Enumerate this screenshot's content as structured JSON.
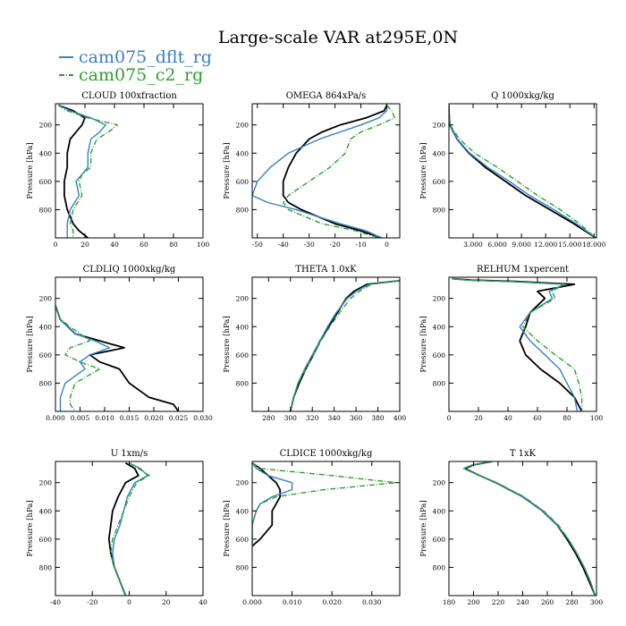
{
  "figure": {
    "title": "Large-scale VAR at295E,0N",
    "legend": [
      {
        "label": "cam075_dflt_rg",
        "color": "#3a7fbf",
        "dash": ""
      },
      {
        "label": "cam075_c2_rg",
        "color": "#2e9e2e",
        "dash": "6 2 1 2"
      }
    ]
  },
  "colors": {
    "black": "#000000",
    "dflt": "#3a7fbf",
    "c2": "#2e9e2e"
  },
  "chart_data": [
    {
      "type": "line",
      "title": "CLOUD  100xfraction",
      "ylabel": "Pressure [hPa]",
      "xlim": [
        0,
        100
      ],
      "ylim": [
        1000,
        50
      ],
      "xticks": [
        0,
        20,
        40,
        60,
        80,
        100
      ],
      "xticklabels": [
        "0",
        "20",
        "40",
        "60",
        "80",
        "100"
      ],
      "yticks": [
        200,
        400,
        600,
        800
      ],
      "yticklabels": [
        "200",
        "400",
        "600",
        "800"
      ],
      "p": [
        60,
        100,
        150,
        200,
        250,
        300,
        400,
        500,
        550,
        600,
        700,
        800,
        900,
        950,
        1000
      ],
      "series": [
        {
          "name": "black",
          "values": [
            2,
            12,
            20,
            18,
            14,
            10,
            8,
            8,
            7,
            6,
            6,
            8,
            12,
            16,
            22
          ]
        },
        {
          "name": "cam075_dflt_rg",
          "values": [
            2,
            10,
            24,
            34,
            30,
            24,
            22,
            22,
            18,
            14,
            16,
            10,
            8,
            8,
            8
          ]
        },
        {
          "name": "cam075_c2_rg",
          "values": [
            2,
            8,
            22,
            42,
            36,
            28,
            24,
            24,
            18,
            16,
            18,
            12,
            10,
            12,
            12
          ]
        }
      ]
    },
    {
      "type": "line",
      "title": "OMEGA  864xPa/s",
      "ylabel": "Pressure [hPa]",
      "xlim": [
        -52,
        5
      ],
      "ylim": [
        1000,
        50
      ],
      "xticks": [
        -50,
        -40,
        -30,
        -20,
        -10,
        0
      ],
      "xticklabels": [
        "-50",
        "-40",
        "-30",
        "-20",
        "-10",
        "0"
      ],
      "yticks": [
        200,
        400,
        600,
        800
      ],
      "yticklabels": [
        "200",
        "400",
        "600",
        "800"
      ],
      "p": [
        60,
        100,
        150,
        200,
        250,
        300,
        400,
        500,
        600,
        700,
        750,
        800,
        900,
        950,
        1000
      ],
      "series": [
        {
          "name": "black",
          "values": [
            0,
            -1,
            -8,
            -18,
            -25,
            -30,
            -35,
            -38,
            -40,
            -40,
            -38,
            -33,
            -20,
            -10,
            -2
          ]
        },
        {
          "name": "cam075_dflt_rg",
          "values": [
            0,
            0,
            -3,
            -10,
            -18,
            -26,
            -38,
            -45,
            -50,
            -52,
            -46,
            -35,
            -18,
            -8,
            -2
          ]
        },
        {
          "name": "cam075_c2_rg",
          "values": [
            0,
            2,
            3,
            -3,
            -10,
            -14,
            -16,
            -22,
            -30,
            -38,
            -40,
            -38,
            -25,
            -12,
            -3
          ]
        }
      ]
    },
    {
      "type": "line",
      "title": "Q  1000xkg/kg",
      "ylabel": "Pressure [hPa]",
      "xlim": [
        0,
        18.3
      ],
      "ylim": [
        1000,
        50
      ],
      "xticks": [
        3,
        6,
        9,
        12,
        15,
        18
      ],
      "xticklabels": [
        "3.000",
        "6.000",
        "9.000",
        "12.000",
        "15.000",
        "18.000"
      ],
      "yticks": [
        200,
        400,
        600,
        800
      ],
      "yticklabels": [
        "200",
        "400",
        "600",
        "800"
      ],
      "p": [
        60,
        100,
        200,
        300,
        400,
        500,
        600,
        700,
        800,
        900,
        1000
      ],
      "series": [
        {
          "name": "black",
          "values": [
            0,
            0,
            0.1,
            1.0,
            2.5,
            4.5,
            7.0,
            9.5,
            12.5,
            15.5,
            18.2
          ]
        },
        {
          "name": "cam075_dflt_rg",
          "values": [
            0,
            0,
            0.1,
            1.0,
            2.6,
            4.8,
            7.5,
            10.0,
            13.0,
            15.8,
            18.2
          ]
        },
        {
          "name": "cam075_c2_rg",
          "values": [
            0,
            0,
            0.15,
            1.3,
            3.2,
            6.0,
            8.5,
            11.0,
            13.8,
            16.2,
            18.2
          ]
        }
      ]
    },
    {
      "type": "line",
      "title": "CLDLIQ  1000xkg/kg",
      "ylabel": "Pressure [hPa]",
      "xlim": [
        0,
        0.03
      ],
      "ylim": [
        1000,
        50
      ],
      "xticks": [
        0,
        0.005,
        0.01,
        0.015,
        0.02,
        0.025,
        0.03
      ],
      "xticklabels": [
        "0.000",
        "0.005",
        "0.010",
        "0.015",
        "0.020",
        "0.025",
        "0.030"
      ],
      "yticks": [
        200,
        400,
        600,
        800
      ],
      "yticklabels": [
        "200",
        "400",
        "600",
        "800"
      ],
      "p": [
        250,
        350,
        450,
        500,
        550,
        600,
        650,
        700,
        800,
        900,
        950,
        1000
      ],
      "series": [
        {
          "name": "black",
          "values": [
            0,
            0.001,
            0.004,
            0.009,
            0.014,
            0.007,
            0.009,
            0.013,
            0.015,
            0.019,
            0.024,
            0.025
          ]
        },
        {
          "name": "cam075_dflt_rg",
          "values": [
            0,
            0.001,
            0.004,
            0.008,
            0.011,
            0.007,
            0.005,
            0.006,
            0.002,
            0.001,
            0.001,
            0.001
          ]
        },
        {
          "name": "cam075_c2_rg",
          "values": [
            0,
            0.001,
            0.005,
            0.007,
            0.003,
            0.002,
            0.005,
            0.009,
            0.004,
            0.003,
            0.003,
            0.004
          ]
        }
      ]
    },
    {
      "type": "line",
      "title": "THETA  1.0xK",
      "ylabel": "Pressure [hPa]",
      "xlim": [
        265,
        400
      ],
      "ylim": [
        1000,
        50
      ],
      "xticks": [
        280,
        300,
        320,
        340,
        360,
        380,
        400
      ],
      "xticklabels": [
        "280",
        "300",
        "320",
        "340",
        "360",
        "380",
        "400"
      ],
      "yticks": [
        200,
        400,
        600,
        800
      ],
      "yticklabels": [
        "200",
        "400",
        "600",
        "800"
      ],
      "p": [
        75,
        100,
        150,
        200,
        300,
        400,
        500,
        600,
        700,
        800,
        900,
        1000
      ],
      "series": [
        {
          "name": "black",
          "values": [
            400,
            370,
            358,
            351,
            343,
            335,
            327,
            321,
            314,
            308,
            303,
            300
          ]
        },
        {
          "name": "cam075_dflt_rg",
          "values": [
            400,
            372,
            360,
            352,
            342,
            334,
            327,
            320,
            313,
            307,
            303,
            300
          ]
        },
        {
          "name": "cam075_c2_rg",
          "values": [
            400,
            374,
            363,
            355,
            345,
            336,
            328,
            321,
            314,
            307,
            303,
            300
          ]
        }
      ]
    },
    {
      "type": "line",
      "title": "RELHUM  1xpercent",
      "ylabel": "Pressure [hPa]",
      "xlim": [
        0,
        100
      ],
      "ylim": [
        1000,
        50
      ],
      "xticks": [
        0,
        20,
        40,
        60,
        80,
        100
      ],
      "xticklabels": [
        "0",
        "20",
        "40",
        "60",
        "80",
        "100"
      ],
      "yticks": [
        200,
        400,
        600,
        800
      ],
      "yticklabels": [
        "200",
        "400",
        "600",
        "800"
      ],
      "p": [
        60,
        70,
        80,
        100,
        150,
        200,
        300,
        400,
        500,
        600,
        700,
        800,
        900,
        1000
      ],
      "series": [
        {
          "name": "black",
          "values": [
            2,
            15,
            45,
            85,
            60,
            65,
            55,
            52,
            48,
            52,
            62,
            75,
            85,
            90
          ]
        },
        {
          "name": "cam075_dflt_rg",
          "values": [
            2,
            12,
            40,
            78,
            68,
            70,
            55,
            48,
            55,
            65,
            75,
            80,
            85,
            87
          ]
        },
        {
          "name": "cam075_c2_rg",
          "values": [
            2,
            12,
            42,
            78,
            70,
            72,
            55,
            50,
            60,
            72,
            85,
            88,
            90,
            90
          ]
        }
      ]
    },
    {
      "type": "line",
      "title": "U  1xm/s",
      "ylabel": "Pressure [hPa]",
      "xlim": [
        -40,
        40
      ],
      "ylim": [
        1000,
        50
      ],
      "xticks": [
        -40,
        -20,
        0,
        20,
        40
      ],
      "xticklabels": [
        "-40",
        "-20",
        "0",
        "20",
        "40"
      ],
      "yticks": [
        200,
        400,
        600,
        800
      ],
      "yticklabels": [
        "200",
        "400",
        "600",
        "800"
      ],
      "p": [
        60,
        100,
        150,
        200,
        300,
        400,
        500,
        600,
        700,
        800,
        900,
        1000
      ],
      "series": [
        {
          "name": "black",
          "values": [
            -2,
            3,
            5,
            -2,
            -6,
            -9,
            -10,
            -11,
            -10,
            -8,
            -5,
            -2
          ]
        },
        {
          "name": "cam075_dflt_rg",
          "values": [
            0,
            6,
            10,
            3,
            -1,
            -3,
            -5,
            -8,
            -9,
            -8,
            -5,
            -2
          ]
        },
        {
          "name": "cam075_c2_rg",
          "values": [
            0,
            5,
            11,
            4,
            0,
            -3,
            -6,
            -9,
            -10,
            -8,
            -5,
            -2
          ]
        }
      ]
    },
    {
      "type": "line",
      "title": "CLDICE  1000xkg/kg",
      "ylabel": "Pressure [hPa]",
      "xlim": [
        0,
        0.037
      ],
      "ylim": [
        1000,
        50
      ],
      "xticks": [
        0,
        0.01,
        0.02,
        0.03
      ],
      "xticklabels": [
        "0.000",
        "0.010",
        "0.020",
        "0.030"
      ],
      "yticks": [
        200,
        400,
        600,
        800
      ],
      "yticklabels": [
        "200",
        "400",
        "600",
        "800"
      ],
      "p": [
        60,
        100,
        150,
        200,
        250,
        300,
        350,
        400,
        500,
        600,
        650
      ],
      "series": [
        {
          "name": "black",
          "values": [
            0,
            0.002,
            0.004,
            0.006,
            0.007,
            0.007,
            0.006,
            0.005,
            0.005,
            0.002,
            0
          ]
        },
        {
          "name": "cam075_dflt_rg",
          "values": [
            0,
            0.001,
            0.004,
            0.01,
            0.01,
            0.005,
            0.002,
            0.001,
            0,
            0,
            0
          ]
        },
        {
          "name": "cam075_c2_rg",
          "values": [
            0,
            0.002,
            0.02,
            0.036,
            0.018,
            0.006,
            0.002,
            0.001,
            0,
            0,
            0
          ]
        }
      ]
    },
    {
      "type": "line",
      "title": "T  1xK",
      "ylabel": "Pressure [hPa]",
      "xlim": [
        180,
        300
      ],
      "ylim": [
        1000,
        50
      ],
      "xticks": [
        180,
        200,
        220,
        240,
        260,
        280,
        300
      ],
      "xticklabels": [
        "180",
        "200",
        "220",
        "240",
        "260",
        "280",
        "300"
      ],
      "yticks": [
        200,
        400,
        600,
        800
      ],
      "yticklabels": [
        "200",
        "400",
        "600",
        "800"
      ],
      "p": [
        50,
        75,
        100,
        150,
        200,
        300,
        400,
        500,
        600,
        700,
        800,
        900,
        1000
      ],
      "series": [
        {
          "name": "black",
          "values": [
            215,
            200,
            193,
            205,
            218,
            240,
            256,
            268,
            276,
            283,
            289,
            294,
            299
          ]
        },
        {
          "name": "cam075_dflt_rg",
          "values": [
            214,
            199,
            192,
            205,
            218,
            240,
            256,
            268,
            277,
            284,
            290,
            295,
            299
          ]
        },
        {
          "name": "cam075_c2_rg",
          "values": [
            214,
            199,
            192,
            205,
            219,
            241,
            257,
            269,
            277,
            284,
            290,
            295,
            299
          ]
        }
      ]
    }
  ]
}
